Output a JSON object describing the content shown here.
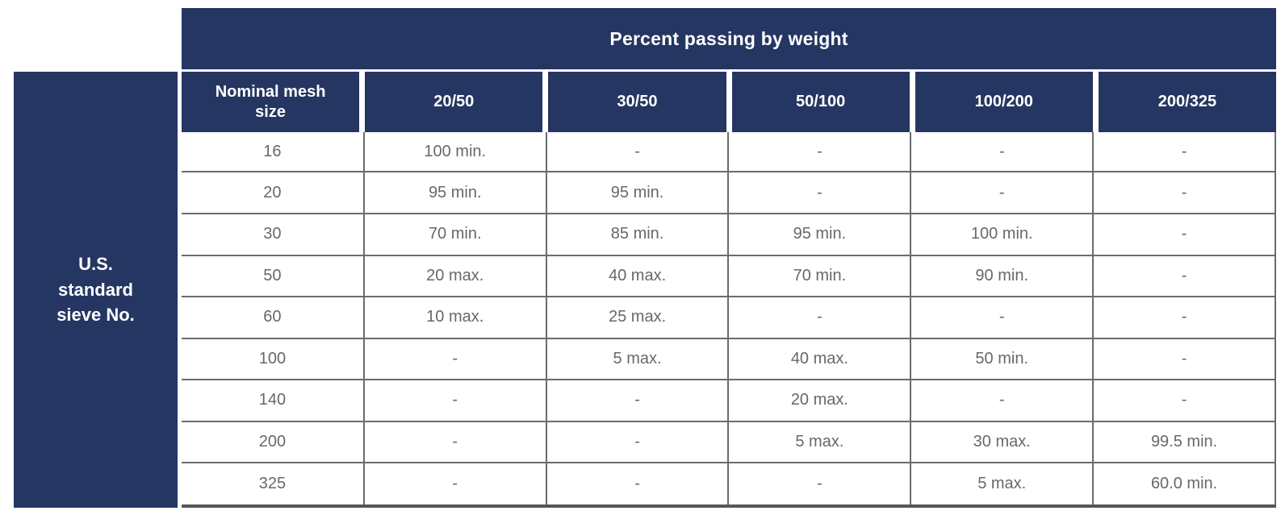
{
  "title": "Percent passing by weight",
  "row_group_header": "U.S. standard sieve No.",
  "table": {
    "columns": [
      "Nominal mesh size",
      "20/50",
      "30/50",
      "50/100",
      "100/200",
      "200/325"
    ],
    "rows": [
      [
        "16",
        "100 min.",
        "-",
        "-",
        "-",
        "-"
      ],
      [
        "20",
        "95 min.",
        "95 min.",
        "-",
        "-",
        "-"
      ],
      [
        "30",
        "70 min.",
        "85 min.",
        "95 min.",
        "100 min.",
        "-"
      ],
      [
        "50",
        "20 max.",
        "40 max.",
        "70 min.",
        "90 min.",
        "-"
      ],
      [
        "60",
        "10 max.",
        "25 max.",
        "-",
        "-",
        "-"
      ],
      [
        "100",
        "-",
        "5 max.",
        "40 max.",
        "50 min.",
        "-"
      ],
      [
        "140",
        "-",
        "-",
        "20 max.",
        "-",
        "-"
      ],
      [
        "200",
        "-",
        "-",
        "5 max.",
        "30 max.",
        "99.5 min."
      ],
      [
        "325",
        "-",
        "-",
        "-",
        "5 max.",
        "60.0 min."
      ]
    ]
  },
  "chart_data": {
    "type": "table",
    "title": "Percent passing by weight",
    "row_axis_label": "U.S. standard sieve No.",
    "columns": [
      "Nominal mesh size",
      "20/50",
      "30/50",
      "50/100",
      "100/200",
      "200/325"
    ],
    "rows": [
      [
        "16",
        "100 min.",
        "-",
        "-",
        "-",
        "-"
      ],
      [
        "20",
        "95 min.",
        "95 min.",
        "-",
        "-",
        "-"
      ],
      [
        "30",
        "70 min.",
        "85 min.",
        "95 min.",
        "100 min.",
        "-"
      ],
      [
        "50",
        "20 max.",
        "40 max.",
        "70 min.",
        "90 min.",
        "-"
      ],
      [
        "60",
        "10 max.",
        "25 max.",
        "-",
        "-",
        "-"
      ],
      [
        "100",
        "-",
        "5 max.",
        "40 max.",
        "50 min.",
        "-"
      ],
      [
        "140",
        "-",
        "-",
        "20 max.",
        "-",
        "-"
      ],
      [
        "200",
        "-",
        "-",
        "5 max.",
        "30 max.",
        "99.5 min."
      ],
      [
        "325",
        "-",
        "-",
        "-",
        "5 max.",
        "60.0 min."
      ]
    ]
  },
  "colors": {
    "header_navy": "#253662",
    "grid_line_gray": "#6a6c6d",
    "bottom_border_gray": "#55565a",
    "data_text_gray": "#66686a",
    "header_text_white": "#ffffff"
  }
}
